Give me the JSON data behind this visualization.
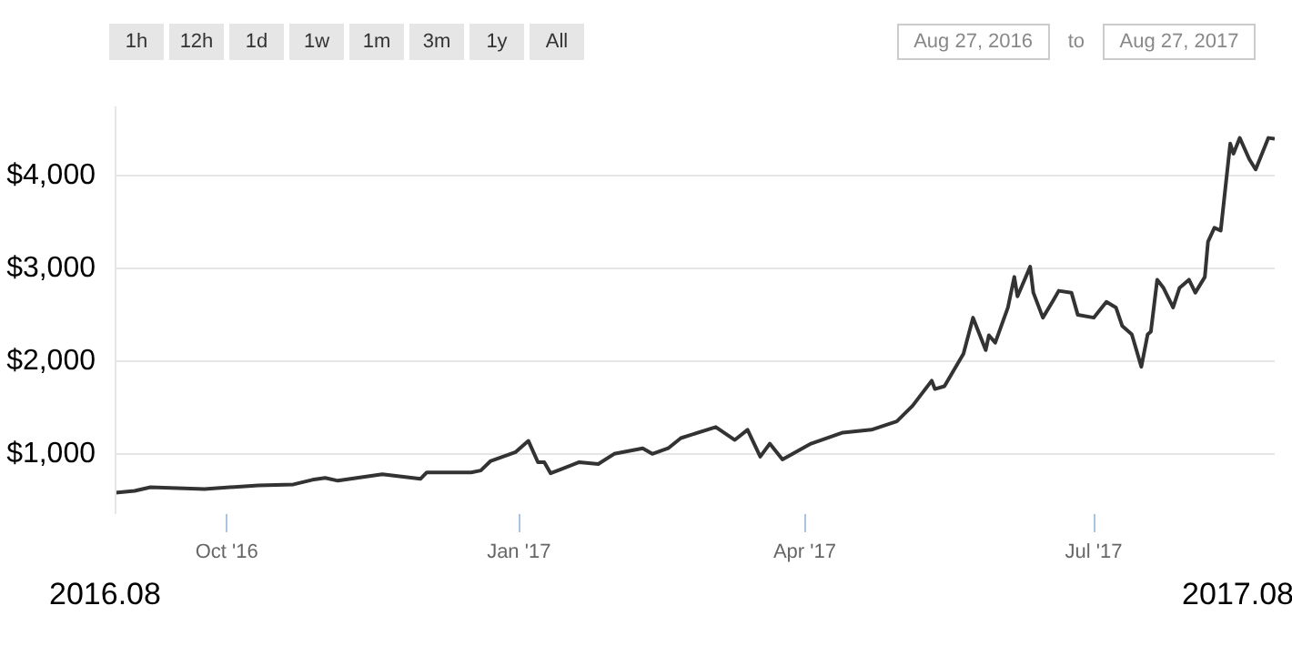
{
  "chart_data": {
    "type": "line",
    "x": [
      "2016-08-27",
      "2016-09-02",
      "2016-09-07",
      "2016-09-24",
      "2016-10-11",
      "2016-10-22",
      "2016-10-28",
      "2016-11-01",
      "2016-11-05",
      "2016-11-19",
      "2016-12-01",
      "2016-12-03",
      "2016-12-17",
      "2016-12-20",
      "2016-12-23",
      "2016-12-27",
      "2016-12-31",
      "2017-01-04",
      "2017-01-07",
      "2017-01-09",
      "2017-01-11",
      "2017-01-14",
      "2017-01-20",
      "2017-01-26",
      "2017-01-31",
      "2017-02-09",
      "2017-02-12",
      "2017-02-17",
      "2017-02-21",
      "2017-03-04",
      "2017-03-10",
      "2017-03-14",
      "2017-03-18",
      "2017-03-21",
      "2017-03-25",
      "2017-04-03",
      "2017-04-13",
      "2017-04-22",
      "2017-04-30",
      "2017-05-05",
      "2017-05-11",
      "2017-05-12",
      "2017-05-15",
      "2017-05-21",
      "2017-05-24",
      "2017-05-28",
      "2017-05-29",
      "2017-05-31",
      "2017-06-04",
      "2017-06-06",
      "2017-06-07",
      "2017-06-11",
      "2017-06-12",
      "2017-06-15",
      "2017-06-18",
      "2017-06-20",
      "2017-06-24",
      "2017-06-26",
      "2017-07-01",
      "2017-07-05",
      "2017-07-08",
      "2017-07-10",
      "2017-07-13",
      "2017-07-16",
      "2017-07-18",
      "2017-07-19",
      "2017-07-21",
      "2017-07-23",
      "2017-07-26",
      "2017-07-28",
      "2017-07-31",
      "2017-08-02",
      "2017-08-05",
      "2017-08-06",
      "2017-08-08",
      "2017-08-10",
      "2017-08-13",
      "2017-08-14",
      "2017-08-16",
      "2017-08-19",
      "2017-08-21",
      "2017-08-25",
      "2017-08-27"
    ],
    "series": [
      {
        "color": "#333333",
        "values": [
          580,
          600,
          640,
          620,
          660,
          670,
          720,
          740,
          710,
          780,
          730,
          800,
          800,
          820,
          920,
          970,
          1020,
          1140,
          910,
          910,
          790,
          830,
          910,
          890,
          1000,
          1060,
          1000,
          1060,
          1170,
          1290,
          1150,
          1260,
          970,
          1110,
          940,
          1110,
          1230,
          1260,
          1350,
          1520,
          1790,
          1700,
          1730,
          2080,
          2470,
          2120,
          2280,
          2200,
          2580,
          2910,
          2700,
          3020,
          2740,
          2470,
          2640,
          2760,
          2740,
          2500,
          2470,
          2640,
          2580,
          2380,
          2290,
          1940,
          2290,
          2320,
          2880,
          2790,
          2580,
          2790,
          2880,
          2740,
          2910,
          3290,
          3440,
          3410,
          4350,
          4240,
          4410,
          4180,
          4070,
          4410,
          4400
        ]
      }
    ],
    "xlim": [
      "2016-08-27",
      "2017-08-27"
    ],
    "xticks": [
      {
        "value": "2016-10-01",
        "label": "Oct '16"
      },
      {
        "value": "2017-01-01",
        "label": "Jan '17"
      },
      {
        "value": "2017-04-01",
        "label": "Apr '17"
      },
      {
        "value": "2017-07-01",
        "label": "Jul '17"
      }
    ],
    "ylim": [
      350,
      4750
    ],
    "yticks": [
      {
        "value": 1000,
        "label": "$1,000"
      },
      {
        "value": 2000,
        "label": "$2,000"
      },
      {
        "value": 3000,
        "label": "$3,000"
      },
      {
        "value": 4000,
        "label": "$4,000"
      }
    ],
    "grid": "y",
    "marker": "none",
    "line_style": "solid",
    "annotations": [
      "1h",
      "12h",
      "1d",
      "1w",
      "1m",
      "3m",
      "1y",
      "All",
      "Aug 27, 2016",
      "to",
      "Aug 27, 2017",
      "2016.08",
      "2017.08"
    ]
  }
}
